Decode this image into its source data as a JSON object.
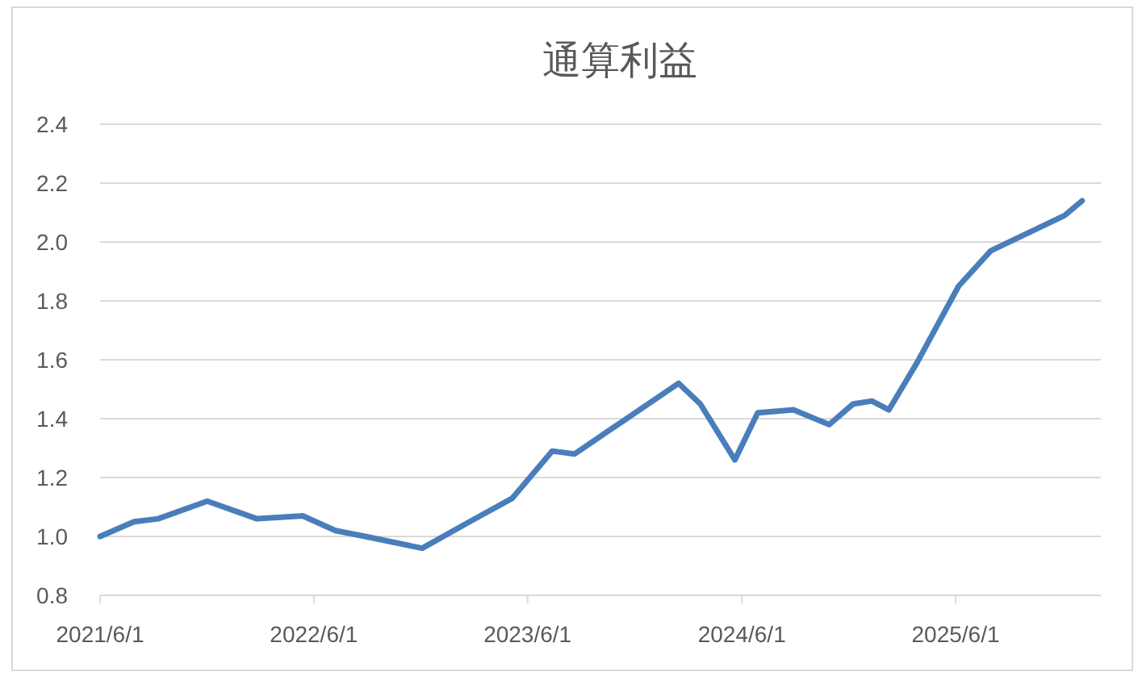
{
  "chart_data": {
    "type": "line",
    "title": "通算利益",
    "x": [
      "2021-06-01",
      "2021-07-29",
      "2021-09-08",
      "2021-12-01",
      "2022-02-24",
      "2022-05-13",
      "2022-07-08",
      "2022-08-28",
      "2022-12-03",
      "2023-02-22",
      "2023-05-06",
      "2023-07-13",
      "2023-08-20",
      "2024-02-14",
      "2024-03-22",
      "2024-05-20",
      "2024-06-28",
      "2024-08-28",
      "2024-10-28",
      "2024-12-08",
      "2025-01-09",
      "2025-02-07",
      "2025-03-27",
      "2025-06-06",
      "2025-07-31",
      "2025-12-04",
      "2026-01-03"
    ],
    "series": [
      {
        "color": "#4a7ebb",
        "values": [
          1.0,
          1.05,
          1.06,
          1.12,
          1.06,
          1.07,
          1.02,
          1.0,
          0.96,
          1.05,
          1.13,
          1.29,
          1.28,
          1.52,
          1.45,
          1.26,
          1.42,
          1.43,
          1.38,
          1.45,
          1.46,
          1.43,
          1.59,
          1.85,
          1.97,
          2.09,
          2.14
        ]
      }
    ],
    "xlim": [
      "2021-06-01",
      "2026-02-04"
    ],
    "xticks": [
      {
        "value": "2021-06-01",
        "label": "2021/6/1"
      },
      {
        "value": "2022-06-01",
        "label": "2022/6/1"
      },
      {
        "value": "2023-06-01",
        "label": "2023/6/1"
      },
      {
        "value": "2024-06-01",
        "label": "2024/6/1"
      },
      {
        "value": "2025-06-01",
        "label": "2025/6/1"
      }
    ],
    "ylim": [
      0.8,
      2.4
    ],
    "yticks": [
      0.8,
      {
        "value": 1,
        "label": "1.0"
      },
      1.2,
      1.4,
      1.6,
      1.8,
      {
        "value": 2,
        "label": "2.0"
      },
      2.2,
      2.4
    ],
    "grid": "y",
    "marker": "none",
    "line_style": "solid"
  }
}
